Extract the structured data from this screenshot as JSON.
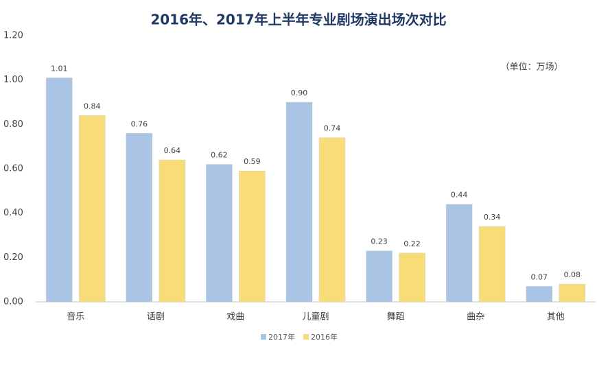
{
  "chart_data": {
    "type": "bar",
    "title": "2016年、2017年上半年专业剧场演出场次对比",
    "annotation": "（单位：万场）",
    "categories": [
      "音乐",
      "话剧",
      "戏曲",
      "儿童剧",
      "舞蹈",
      "曲杂",
      "其他"
    ],
    "series": [
      {
        "name": "2017年",
        "color": "#a9c4e4",
        "values": [
          1.01,
          0.76,
          0.62,
          0.9,
          0.23,
          0.44,
          0.07
        ],
        "value_labels": [
          "1.01",
          "0.76",
          "0.62",
          "0.90",
          "0.23",
          "0.44",
          "0.07"
        ]
      },
      {
        "name": "2016年",
        "color": "#f7dc78",
        "values": [
          0.84,
          0.64,
          0.59,
          0.74,
          0.22,
          0.34,
          0.08
        ],
        "value_labels": [
          "0.84",
          "0.64",
          "0.59",
          "0.74",
          "0.22",
          "0.34",
          "0.08"
        ]
      }
    ],
    "ylim": [
      0,
      1.2
    ],
    "yticks": [
      {
        "value": 0,
        "label": "0.00"
      },
      {
        "value": 0.2,
        "label": "0.20"
      },
      {
        "value": 0.4,
        "label": "0.40"
      },
      {
        "value": 0.6,
        "label": "0.60"
      },
      {
        "value": 0.8,
        "label": "0.80"
      },
      {
        "value": 1.0,
        "label": "1.00"
      },
      {
        "value": 1.2,
        "label": "1.20"
      }
    ],
    "grid": false
  }
}
